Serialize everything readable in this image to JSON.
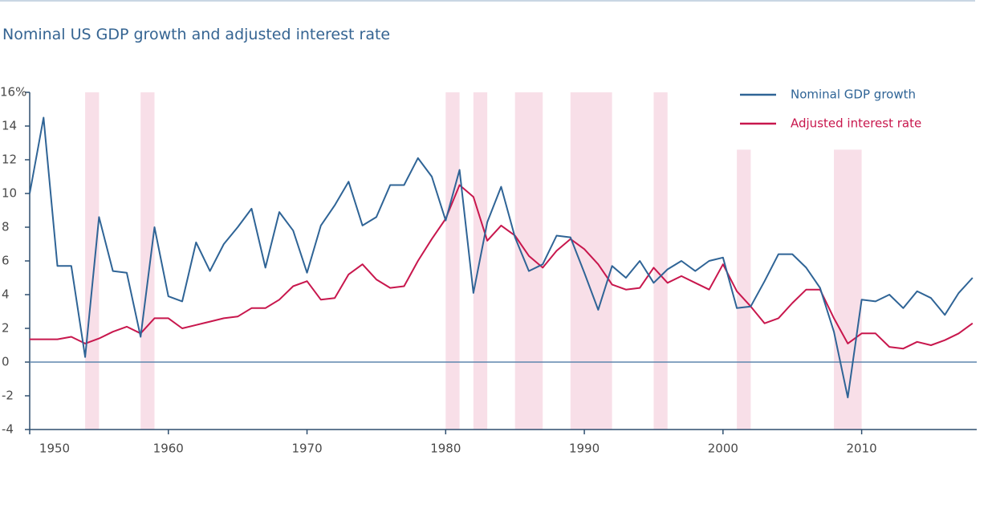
{
  "chart_data": {
    "type": "line",
    "title": "Nominal US GDP growth and adjusted interest rate",
    "x": [
      1950,
      1951,
      1952,
      1953,
      1954,
      1955,
      1956,
      1957,
      1958,
      1959,
      1960,
      1961,
      1962,
      1963,
      1964,
      1965,
      1966,
      1967,
      1968,
      1969,
      1970,
      1971,
      1972,
      1973,
      1974,
      1975,
      1976,
      1977,
      1978,
      1979,
      1980,
      1981,
      1982,
      1983,
      1984,
      1985,
      1986,
      1987,
      1988,
      1989,
      1990,
      1991,
      1992,
      1993,
      1994,
      1995,
      1996,
      1997,
      1998,
      1999,
      2000,
      2001,
      2002,
      2003,
      2004,
      2005,
      2006,
      2007,
      2008,
      2009,
      2010,
      2011,
      2012,
      2013,
      2014,
      2015,
      2016,
      2017,
      2018
    ],
    "series": [
      {
        "name": "Nominal GDP growth",
        "color": "#2f6496",
        "values": [
          10,
          14.5,
          5.7,
          5.7,
          0.3,
          8.6,
          5.4,
          5.3,
          1.5,
          8.0,
          3.9,
          3.6,
          7.1,
          5.4,
          7.0,
          8.0,
          9.1,
          5.6,
          8.9,
          7.8,
          5.3,
          8.1,
          9.3,
          10.7,
          8.1,
          8.6,
          10.5,
          10.5,
          12.1,
          11.0,
          8.4,
          11.4,
          4.1,
          8.3,
          10.4,
          7.4,
          5.4,
          5.8,
          7.5,
          7.4,
          5.3,
          3.1,
          5.7,
          5.0,
          6.0,
          4.7,
          5.5,
          6.0,
          5.4,
          6.0,
          6.2,
          3.2,
          3.3,
          4.8,
          6.4,
          6.4,
          5.6,
          4.4,
          1.8,
          -2.1,
          3.7,
          3.6,
          4.0,
          3.2,
          4.2,
          3.8,
          2.8,
          4.1,
          5.0
        ]
      },
      {
        "name": "Adjusted interest rate",
        "color": "#c8174d",
        "values": [
          1.35,
          1.35,
          1.35,
          1.5,
          1.1,
          1.4,
          1.8,
          2.1,
          1.7,
          2.6,
          2.6,
          2.0,
          2.2,
          2.4,
          2.6,
          2.7,
          3.2,
          3.2,
          3.7,
          4.5,
          4.8,
          3.7,
          3.8,
          5.2,
          5.8,
          4.9,
          4.4,
          4.5,
          6.0,
          7.3,
          8.5,
          10.5,
          9.8,
          7.2,
          8.1,
          7.5,
          6.3,
          5.6,
          6.6,
          7.3,
          6.7,
          5.8,
          4.6,
          4.3,
          4.4,
          5.6,
          4.7,
          5.1,
          4.7,
          4.3,
          5.8,
          4.2,
          3.3,
          2.3,
          2.6,
          3.5,
          4.3,
          4.3,
          2.6,
          1.1,
          1.7,
          1.7,
          0.9,
          0.8,
          1.2,
          1.0,
          1.3,
          1.7,
          2.3
        ]
      }
    ],
    "shaded_spans": [
      {
        "start": 1954,
        "end": 1955,
        "top": 16
      },
      {
        "start": 1958,
        "end": 1959,
        "top": 16
      },
      {
        "start": 1980,
        "end": 1981,
        "top": 16
      },
      {
        "start": 1982,
        "end": 1983,
        "top": 16
      },
      {
        "start": 1985,
        "end": 1987,
        "top": 16
      },
      {
        "start": 1989,
        "end": 1992,
        "top": 16
      },
      {
        "start": 1995,
        "end": 1996,
        "top": 16
      },
      {
        "start": 2001,
        "end": 2002,
        "top": 12.6
      },
      {
        "start": 2008,
        "end": 2010,
        "top": 12.6
      }
    ],
    "shade_color": "#f8dfe8",
    "xlim": [
      1950,
      2018.3
    ],
    "xticks": [
      1950,
      1960,
      1970,
      1980,
      1990,
      2000,
      2010
    ],
    "ylim": [
      -4,
      16
    ],
    "yticks": [
      -4,
      -2,
      0,
      2,
      4,
      6,
      8,
      10,
      12,
      {
        "value": 16,
        "label": "16%"
      },
      14
    ],
    "zero_line": true,
    "legend": "upper right"
  }
}
